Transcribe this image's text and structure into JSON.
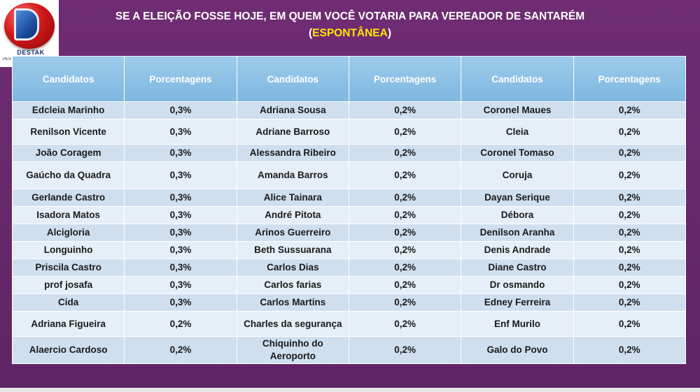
{
  "logo": {
    "text": "DESTAK",
    "subtext": "PES"
  },
  "title": {
    "line1": "SE A ELEIÇÃO FOSSE HOJE, EM QUEM VOCÊ VOTARIA PARA VEREADOR DE SANTARÉM",
    "open_paren": "(",
    "highlight": "ESPONTÂNEA",
    "close_paren": ")"
  },
  "table": {
    "headers": [
      "Candidatos",
      "Porcentagens",
      "Candidatos",
      "Porcentagens",
      "Candidatos",
      "Porcentagens"
    ],
    "rows": [
      [
        "Edcleia Marinho",
        "0,3%",
        "Adriana Sousa",
        "0,2%",
        "Coronel Maues",
        "0,2%"
      ],
      [
        "Renilson Vicente",
        "0,3%",
        "Adriane Barroso",
        "0,2%",
        "Cleia",
        "0,2%"
      ],
      [
        "João Coragem",
        "0,3%",
        "Alessandra Ribeiro",
        "0,2%",
        "Coronel Tomaso",
        "0,2%"
      ],
      [
        "Gaúcho da Quadra",
        "0,3%",
        "Amanda Barros",
        "0,2%",
        "Coruja",
        "0,2%"
      ],
      [
        "Gerlande Castro",
        "0,3%",
        "Alice Tainara",
        "0,2%",
        "Dayan Serique",
        "0,2%"
      ],
      [
        "Isadora Matos",
        "0,3%",
        "André Pitota",
        "0,2%",
        "Débora",
        "0,2%"
      ],
      [
        "Alcigloria",
        "0,3%",
        "Arinos Guerreiro",
        "0,2%",
        "Denilson Aranha",
        "0,2%"
      ],
      [
        "Longuinho",
        "0,3%",
        "Beth Sussuarana",
        "0,2%",
        "Denis Andrade",
        "0,2%"
      ],
      [
        "Priscila Castro",
        "0,3%",
        "Carlos Dias",
        "0,2%",
        "Diane Castro",
        "0,2%"
      ],
      [
        "prof josafa",
        "0,3%",
        "Carlos farias",
        "0,2%",
        "Dr osmando",
        "0,2%"
      ],
      [
        "Cida",
        "0,3%",
        "Carlos Martins",
        "0,2%",
        "Edney Ferreira",
        "0,2%"
      ],
      [
        "Adriana Figueira",
        "0,2%",
        "Charles da segurança",
        "0,2%",
        "Enf Murilo",
        "0,2%"
      ],
      [
        "Alaercio Cardoso",
        "0,2%",
        "Chiquinho do Aeroporto",
        "0,2%",
        "Galo do Povo",
        "0,2%"
      ]
    ]
  }
}
